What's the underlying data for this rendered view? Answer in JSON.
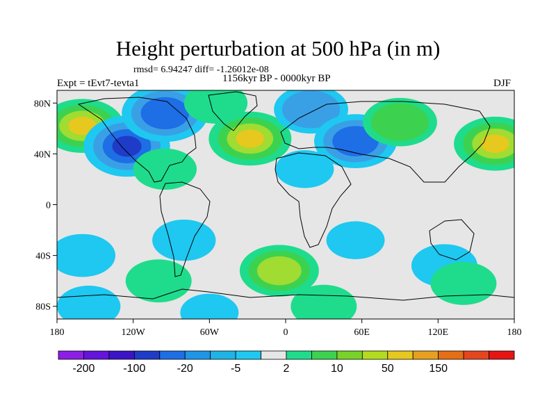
{
  "title": "Height perturbation at 500 hPa (in m)",
  "rmsd_line": "rmsd= 6.94247 diff= -1.26012e-08",
  "subtitle": "1156kyr BP - 0000kyr BP",
  "experiment": "Expt = tEvt7-tevta1",
  "season": "DJF",
  "colors": {
    "neg_strong": "#1e3cc8",
    "neg_mid": "#1e6ee6",
    "neg_weak": "#3aa0e6",
    "neg_faint": "#1ec8f0",
    "neutral": "#e6e6e6",
    "pos_faint": "#1edc8c",
    "pos_weak": "#3cd250",
    "pos_mid": "#a0dc32",
    "pos_strong": "#e6c81e"
  },
  "chart_data": {
    "type": "heatmap",
    "variable": "Height perturbation at 500 hPa",
    "units": "m",
    "lon_range": [
      -180,
      180
    ],
    "lat_range": [
      -90,
      90
    ],
    "x_ticks": [
      "180",
      "120W",
      "60W",
      "0",
      "60E",
      "120E",
      "180"
    ],
    "x_tick_values": [
      -180,
      -120,
      -60,
      0,
      60,
      120,
      180
    ],
    "y_ticks": [
      "80N",
      "40N",
      "0",
      "40S",
      "80S"
    ],
    "y_tick_values": [
      80,
      40,
      0,
      -40,
      -80
    ],
    "colorbar": {
      "colors": [
        "#8c1ee6",
        "#6414dc",
        "#3c14c8",
        "#1e3cc8",
        "#1e6ee6",
        "#1e96e6",
        "#1eb4e6",
        "#1ec8f0",
        "#e6e6e6",
        "#1edc8c",
        "#3cd250",
        "#78d228",
        "#b4dc1e",
        "#e6c81e",
        "#e6a01e",
        "#e66e14",
        "#e6461e",
        "#e61414"
      ],
      "labels": [
        "-200",
        "-100",
        "-20",
        "-5",
        "2",
        "10",
        "50",
        "150"
      ]
    },
    "anomalies": [
      {
        "lon": -160,
        "lat": 62,
        "value": 40
      },
      {
        "lon": -125,
        "lat": 46,
        "value": -120
      },
      {
        "lon": -95,
        "lat": 72,
        "value": -60
      },
      {
        "lon": -55,
        "lat": 80,
        "value": 8
      },
      {
        "lon": -28,
        "lat": 52,
        "value": 40
      },
      {
        "lon": 20,
        "lat": 75,
        "value": -20
      },
      {
        "lon": 55,
        "lat": 50,
        "value": -40
      },
      {
        "lon": 90,
        "lat": 65,
        "value": 20
      },
      {
        "lon": 165,
        "lat": 48,
        "value": 40
      },
      {
        "lon": -95,
        "lat": 28,
        "value": 8
      },
      {
        "lon": 15,
        "lat": 28,
        "value": -5
      },
      {
        "lon": -80,
        "lat": -28,
        "value": -8
      },
      {
        "lon": 55,
        "lat": -28,
        "value": -5
      },
      {
        "lon": -160,
        "lat": -40,
        "value": -10
      },
      {
        "lon": 125,
        "lat": -48,
        "value": -10
      },
      {
        "lon": -100,
        "lat": -60,
        "value": 10
      },
      {
        "lon": -5,
        "lat": -52,
        "value": 30
      },
      {
        "lon": 140,
        "lat": -62,
        "value": 10
      },
      {
        "lon": -155,
        "lat": -80,
        "value": -8
      },
      {
        "lon": -60,
        "lat": -85,
        "value": -5
      },
      {
        "lon": 30,
        "lat": -80,
        "value": 10
      }
    ]
  }
}
